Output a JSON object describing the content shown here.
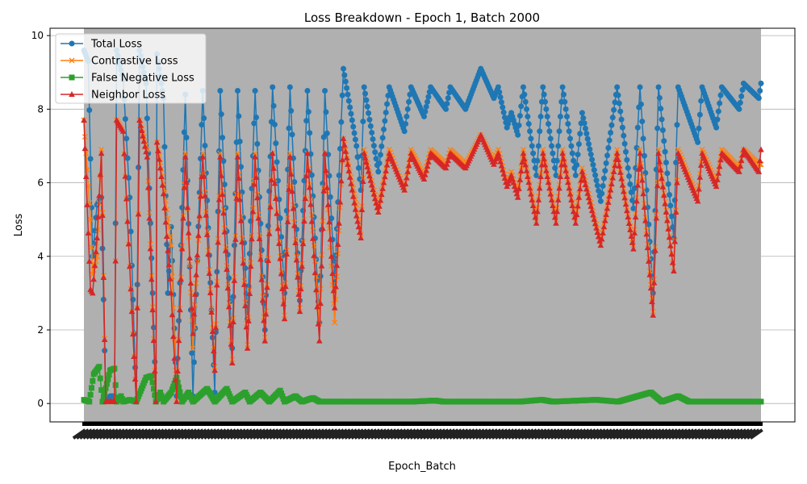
{
  "chart_data": {
    "type": "line",
    "title": "Loss Breakdown - Epoch 1, Batch 2000",
    "xlabel": "Epoch_Batch",
    "ylabel": "Loss",
    "ylim": [
      -0.5,
      10.2
    ],
    "yticks": [
      0,
      2,
      4,
      6,
      8,
      10
    ],
    "grid": "y",
    "legend_position": "top-left",
    "plot_background": "#b0b0b0",
    "series": [
      {
        "name": "Total Loss",
        "color": "#1f77b4",
        "marker": "circle",
        "anchors": [
          [
            0,
            9.6
          ],
          [
            4,
            9.3
          ],
          [
            8,
            4.0
          ],
          [
            12,
            5.4
          ],
          [
            16,
            5.6
          ],
          [
            20,
            0.05
          ],
          [
            24,
            0.2
          ],
          [
            28,
            0.2
          ],
          [
            30,
            9.6
          ],
          [
            36,
            8.8
          ],
          [
            42,
            5.6
          ],
          [
            48,
            0.05
          ],
          [
            51,
            9.6
          ],
          [
            57,
            8.7
          ],
          [
            63,
            3.0
          ],
          [
            66,
            0.2
          ],
          [
            67,
            9.5
          ],
          [
            73,
            8.3
          ],
          [
            77,
            3.0
          ],
          [
            80,
            4.8
          ],
          [
            85,
            0.2
          ],
          [
            93,
            8.4
          ],
          [
            100,
            0.2
          ],
          [
            109,
            8.5
          ],
          [
            120,
            0.3
          ],
          [
            125,
            8.5
          ],
          [
            136,
            1.5
          ],
          [
            141,
            8.5
          ],
          [
            150,
            2.3
          ],
          [
            157,
            8.5
          ],
          [
            166,
            2.0
          ],
          [
            173,
            8.6
          ],
          [
            184,
            3.0
          ],
          [
            189,
            8.6
          ],
          [
            198,
            2.8
          ],
          [
            205,
            8.5
          ],
          [
            216,
            2.2
          ],
          [
            221,
            8.5
          ],
          [
            230,
            3.3
          ],
          [
            238,
            9.1
          ],
          [
            250,
            7.0
          ],
          [
            254,
            5.8
          ],
          [
            257,
            8.6
          ],
          [
            270,
            6.3
          ],
          [
            280,
            8.6
          ],
          [
            294,
            7.4
          ],
          [
            300,
            8.6
          ],
          [
            312,
            7.8
          ],
          [
            318,
            8.6
          ],
          [
            332,
            8.0
          ],
          [
            336,
            8.6
          ],
          [
            350,
            8.0
          ],
          [
            364,
            9.1
          ],
          [
            376,
            8.3
          ],
          [
            380,
            8.6
          ],
          [
            388,
            7.5
          ],
          [
            392,
            7.9
          ],
          [
            398,
            7.3
          ],
          [
            403,
            8.6
          ],
          [
            415,
            6.2
          ],
          [
            421,
            8.6
          ],
          [
            433,
            6.2
          ],
          [
            439,
            8.6
          ],
          [
            451,
            6.2
          ],
          [
            457,
            7.9
          ],
          [
            474,
            5.5
          ],
          [
            489,
            8.6
          ],
          [
            504,
            5.3
          ],
          [
            510,
            8.6
          ],
          [
            522,
            3.0
          ],
          [
            527,
            8.6
          ],
          [
            541,
            4.5
          ],
          [
            545,
            8.6
          ],
          [
            563,
            7.1
          ],
          [
            567,
            8.6
          ],
          [
            580,
            7.5
          ],
          [
            585,
            8.6
          ],
          [
            601,
            8.0
          ],
          [
            605,
            8.7
          ],
          [
            619,
            8.3
          ],
          [
            621,
            8.7
          ]
        ]
      },
      {
        "name": "Contrastive Loss",
        "color": "#ff7f0e",
        "marker": "x",
        "anchors": [
          [
            0,
            7.7
          ],
          [
            6,
            5.0
          ],
          [
            8,
            3.5
          ],
          [
            12,
            4.0
          ],
          [
            16,
            6.9
          ],
          [
            20,
            0.05
          ],
          [
            28,
            0.05
          ],
          [
            30,
            7.7
          ],
          [
            36,
            7.4
          ],
          [
            48,
            0.05
          ],
          [
            51,
            7.7
          ],
          [
            58,
            6.9
          ],
          [
            66,
            0.05
          ],
          [
            67,
            7.1
          ],
          [
            73,
            6.0
          ],
          [
            80,
            4.3
          ],
          [
            85,
            0.05
          ],
          [
            93,
            6.8
          ],
          [
            100,
            1.5
          ],
          [
            109,
            6.8
          ],
          [
            120,
            1.0
          ],
          [
            125,
            6.8
          ],
          [
            136,
            1.2
          ],
          [
            141,
            6.8
          ],
          [
            150,
            1.6
          ],
          [
            157,
            6.8
          ],
          [
            166,
            1.8
          ],
          [
            173,
            6.8
          ],
          [
            184,
            2.4
          ],
          [
            189,
            6.8
          ],
          [
            198,
            2.6
          ],
          [
            205,
            6.8
          ],
          [
            216,
            2.2
          ],
          [
            221,
            6.8
          ],
          [
            230,
            2.2
          ],
          [
            238,
            7.2
          ],
          [
            250,
            5.4
          ],
          [
            254,
            4.6
          ],
          [
            257,
            6.9
          ],
          [
            270,
            5.3
          ],
          [
            280,
            6.9
          ],
          [
            294,
            5.8
          ],
          [
            300,
            6.9
          ],
          [
            312,
            6.2
          ],
          [
            318,
            6.9
          ],
          [
            332,
            6.5
          ],
          [
            336,
            6.9
          ],
          [
            350,
            6.5
          ],
          [
            364,
            7.3
          ],
          [
            376,
            6.6
          ],
          [
            380,
            6.9
          ],
          [
            388,
            6.0
          ],
          [
            392,
            6.3
          ],
          [
            398,
            5.7
          ],
          [
            403,
            6.9
          ],
          [
            415,
            5.0
          ],
          [
            421,
            6.9
          ],
          [
            433,
            5.0
          ],
          [
            439,
            6.9
          ],
          [
            451,
            5.0
          ],
          [
            457,
            6.4
          ],
          [
            474,
            4.4
          ],
          [
            489,
            6.9
          ],
          [
            504,
            4.3
          ],
          [
            510,
            6.9
          ],
          [
            522,
            2.5
          ],
          [
            527,
            6.9
          ],
          [
            541,
            3.6
          ],
          [
            545,
            6.9
          ],
          [
            563,
            5.6
          ],
          [
            567,
            6.9
          ],
          [
            580,
            6.0
          ],
          [
            585,
            6.9
          ],
          [
            601,
            6.4
          ],
          [
            605,
            6.9
          ],
          [
            619,
            6.5
          ],
          [
            621,
            6.5
          ]
        ]
      },
      {
        "name": "False Negative Loss",
        "color": "#2ca02c",
        "marker": "square",
        "anchors": [
          [
            0,
            0.1
          ],
          [
            5,
            0.05
          ],
          [
            9,
            0.8
          ],
          [
            14,
            1.0
          ],
          [
            17,
            0.05
          ],
          [
            24,
            0.9
          ],
          [
            28,
            0.95
          ],
          [
            30,
            0.05
          ],
          [
            34,
            0.2
          ],
          [
            36,
            0.05
          ],
          [
            42,
            0.1
          ],
          [
            48,
            0.05
          ],
          [
            57,
            0.7
          ],
          [
            62,
            0.75
          ],
          [
            66,
            0.05
          ],
          [
            70,
            0.3
          ],
          [
            73,
            0.05
          ],
          [
            80,
            0.3
          ],
          [
            85,
            0.7
          ],
          [
            90,
            0.05
          ],
          [
            96,
            0.3
          ],
          [
            100,
            0.05
          ],
          [
            113,
            0.4
          ],
          [
            120,
            0.05
          ],
          [
            131,
            0.4
          ],
          [
            136,
            0.05
          ],
          [
            148,
            0.3
          ],
          [
            152,
            0.05
          ],
          [
            162,
            0.3
          ],
          [
            170,
            0.05
          ],
          [
            180,
            0.35
          ],
          [
            184,
            0.05
          ],
          [
            194,
            0.2
          ],
          [
            200,
            0.05
          ],
          [
            210,
            0.15
          ],
          [
            216,
            0.05
          ],
          [
            238,
            0.05
          ],
          [
            300,
            0.05
          ],
          [
            322,
            0.08
          ],
          [
            330,
            0.05
          ],
          [
            400,
            0.05
          ],
          [
            420,
            0.1
          ],
          [
            430,
            0.05
          ],
          [
            470,
            0.1
          ],
          [
            490,
            0.05
          ],
          [
            520,
            0.3
          ],
          [
            530,
            0.05
          ],
          [
            545,
            0.2
          ],
          [
            555,
            0.05
          ],
          [
            621,
            0.05
          ]
        ]
      },
      {
        "name": "Neighbor Loss",
        "color": "#d62728",
        "marker": "triangle",
        "anchors": [
          [
            0,
            7.7
          ],
          [
            6,
            3.1
          ],
          [
            8,
            3.0
          ],
          [
            12,
            4.5
          ],
          [
            16,
            6.8
          ],
          [
            20,
            0.05
          ],
          [
            28,
            0.05
          ],
          [
            30,
            7.7
          ],
          [
            36,
            7.4
          ],
          [
            48,
            0.05
          ],
          [
            51,
            7.7
          ],
          [
            58,
            6.7
          ],
          [
            66,
            0.05
          ],
          [
            67,
            7.1
          ],
          [
            73,
            5.7
          ],
          [
            80,
            3.0
          ],
          [
            85,
            0.05
          ],
          [
            93,
            6.7
          ],
          [
            100,
            1.9
          ],
          [
            109,
            6.7
          ],
          [
            120,
            0.9
          ],
          [
            125,
            6.7
          ],
          [
            136,
            1.1
          ],
          [
            141,
            6.7
          ],
          [
            150,
            1.5
          ],
          [
            157,
            6.7
          ],
          [
            166,
            1.7
          ],
          [
            173,
            6.8
          ],
          [
            184,
            2.3
          ],
          [
            189,
            6.7
          ],
          [
            198,
            2.5
          ],
          [
            205,
            6.8
          ],
          [
            216,
            1.7
          ],
          [
            221,
            6.8
          ],
          [
            230,
            2.6
          ],
          [
            238,
            7.2
          ],
          [
            250,
            5.1
          ],
          [
            254,
            4.5
          ],
          [
            257,
            6.8
          ],
          [
            270,
            5.2
          ],
          [
            280,
            6.8
          ],
          [
            294,
            5.8
          ],
          [
            300,
            6.8
          ],
          [
            312,
            6.1
          ],
          [
            318,
            6.8
          ],
          [
            332,
            6.4
          ],
          [
            336,
            6.8
          ],
          [
            350,
            6.4
          ],
          [
            364,
            7.3
          ],
          [
            376,
            6.5
          ],
          [
            380,
            6.8
          ],
          [
            388,
            5.9
          ],
          [
            392,
            6.2
          ],
          [
            398,
            5.6
          ],
          [
            403,
            6.8
          ],
          [
            415,
            4.9
          ],
          [
            421,
            6.8
          ],
          [
            433,
            4.9
          ],
          [
            439,
            6.8
          ],
          [
            451,
            4.9
          ],
          [
            457,
            6.3
          ],
          [
            474,
            4.3
          ],
          [
            489,
            6.8
          ],
          [
            504,
            4.2
          ],
          [
            510,
            6.8
          ],
          [
            522,
            2.4
          ],
          [
            527,
            6.8
          ],
          [
            541,
            3.6
          ],
          [
            545,
            6.8
          ],
          [
            563,
            5.5
          ],
          [
            567,
            6.8
          ],
          [
            580,
            5.9
          ],
          [
            585,
            6.8
          ],
          [
            601,
            6.3
          ],
          [
            605,
            6.9
          ],
          [
            619,
            6.3
          ],
          [
            621,
            6.9
          ]
        ]
      }
    ],
    "x_count": 622
  }
}
